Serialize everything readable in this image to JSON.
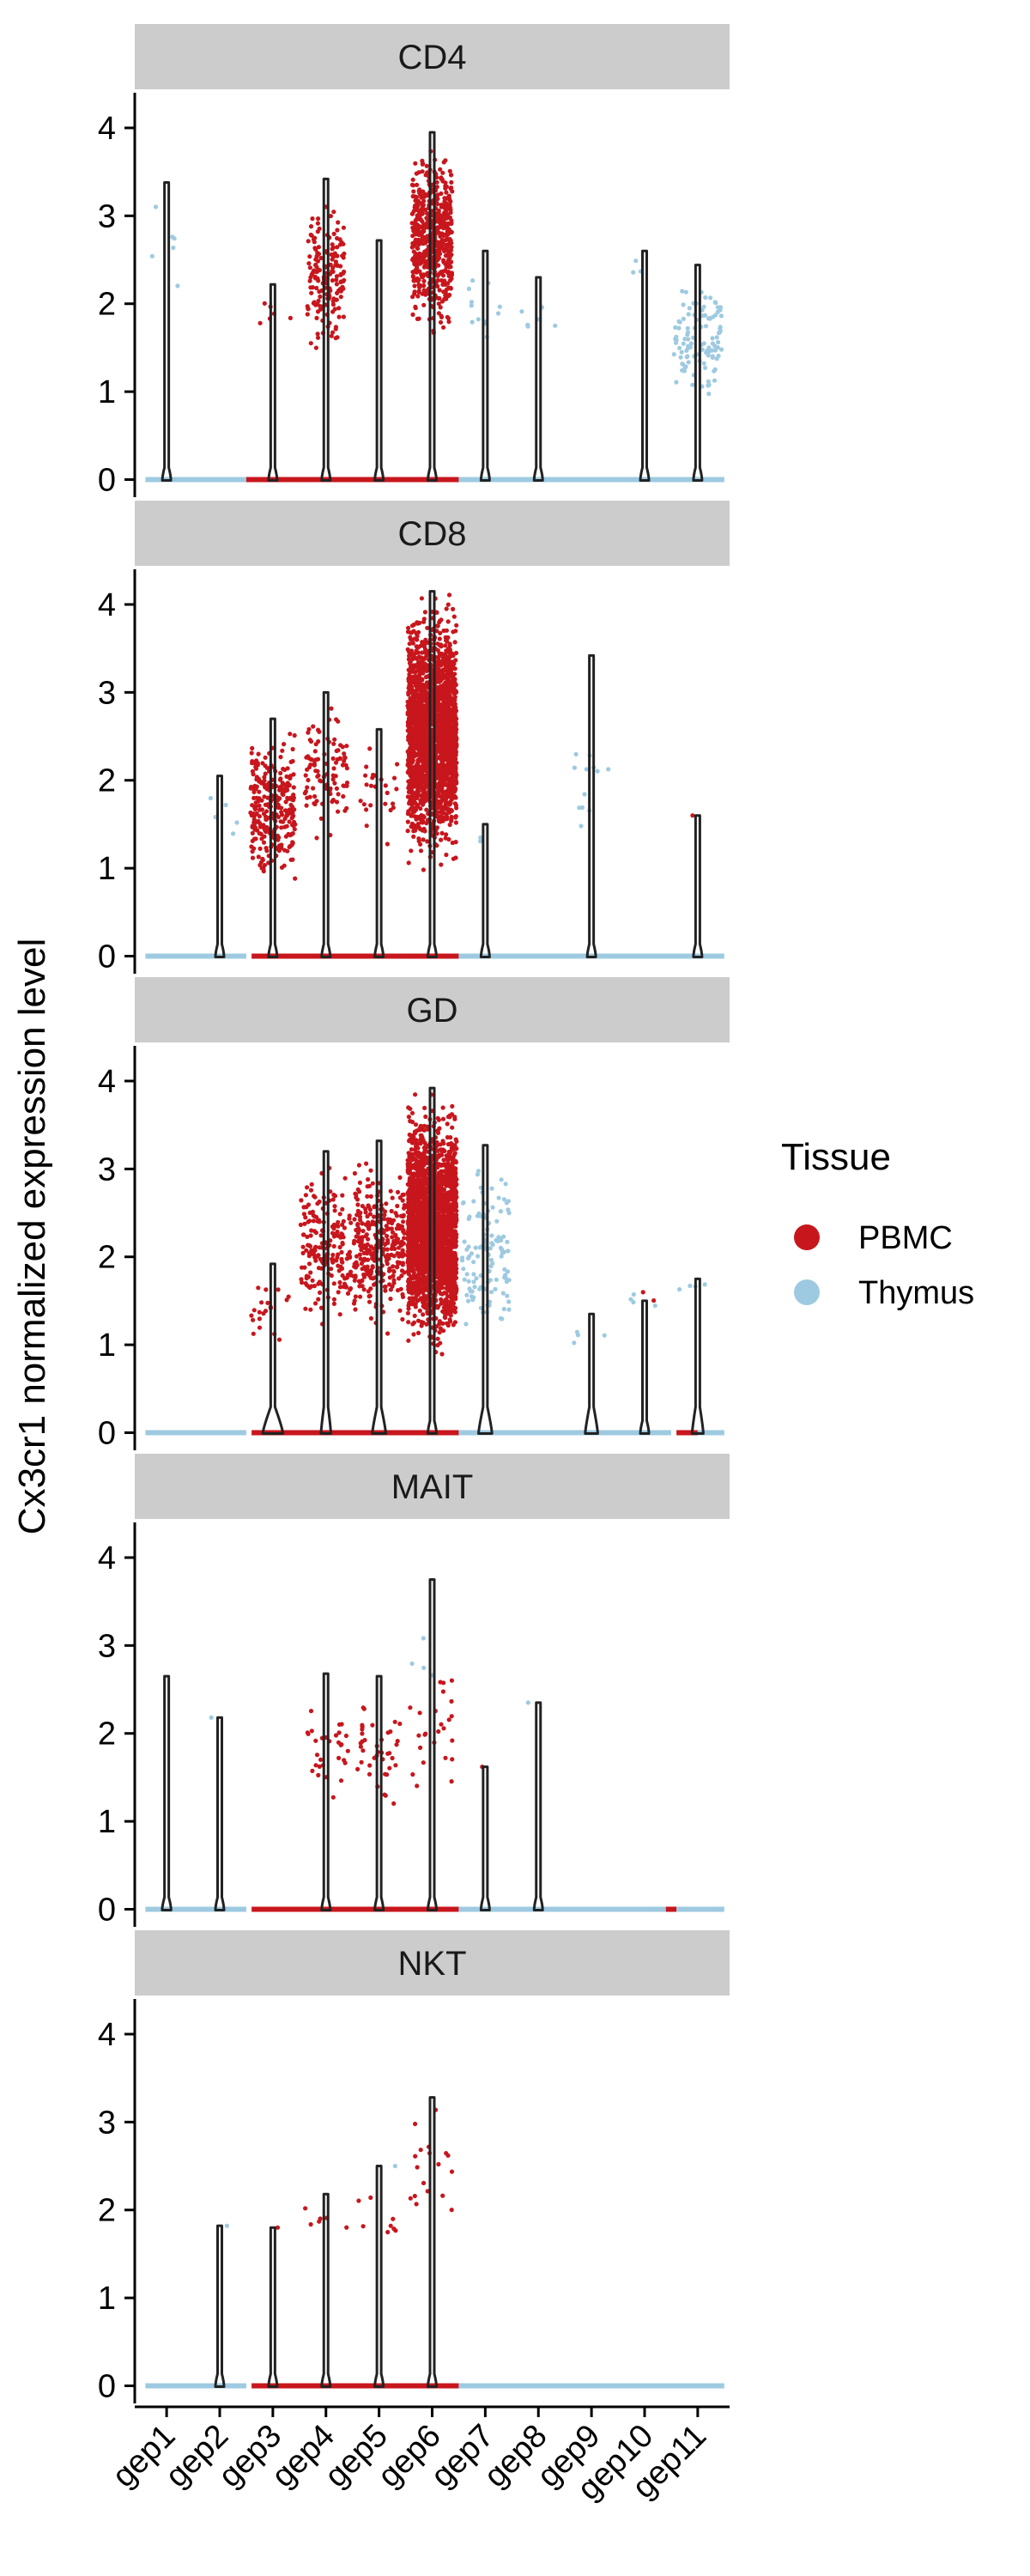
{
  "chart_data": {
    "type": "violin",
    "ylabel": "Cx3cr1 normalized expression level",
    "categories": [
      "gep1",
      "gep2",
      "gep3",
      "gep4",
      "gep5",
      "gep6",
      "gep7",
      "gep8",
      "gep9",
      "gep10",
      "gep11"
    ],
    "y_ticks": [
      "0",
      "1",
      "2",
      "3",
      "4"
    ],
    "ylim": [
      -0.2,
      4.4
    ],
    "legend": {
      "title": "Tissue",
      "position": "right",
      "entries": [
        {
          "label": "PBMC",
          "color": "#c8161d"
        },
        {
          "label": "Thymus",
          "color": "#9ecae1"
        }
      ]
    },
    "facets": [
      {
        "label": "CD4",
        "violin_max": [
          3.38,
          0,
          2.22,
          3.42,
          2.72,
          3.95,
          2.6,
          2.3,
          0,
          2.6,
          2.44
        ],
        "groups": [
          {
            "tissue": "Thymus",
            "gep": 1,
            "n": 6,
            "min": 1.6,
            "max": 3.4,
            "spread": 0.35
          },
          {
            "tissue": "PBMC",
            "gep": 3,
            "n": 6,
            "min": 1.5,
            "max": 2.2,
            "spread": 0.35
          },
          {
            "tissue": "PBMC",
            "gep": 4,
            "n": 170,
            "min": 1.3,
            "max": 3.3,
            "spread": 0.35
          },
          {
            "tissue": "PBMC",
            "gep": 6,
            "n": 600,
            "min": 1.5,
            "max": 3.9,
            "spread": 0.38
          },
          {
            "tissue": "Thymus",
            "gep": 7,
            "n": 12,
            "min": 1.3,
            "max": 2.6,
            "spread": 0.35
          },
          {
            "tissue": "Thymus",
            "gep": 8,
            "n": 6,
            "min": 1.5,
            "max": 2.3,
            "spread": 0.35
          },
          {
            "tissue": "Thymus",
            "gep": 10,
            "n": 3,
            "min": 2.2,
            "max": 2.6,
            "spread": 0.35
          },
          {
            "tissue": "Thymus",
            "gep": 11,
            "n": 110,
            "min": 0.75,
            "max": 2.4,
            "spread": 0.45
          }
        ]
      },
      {
        "label": "CD8",
        "violin_max": [
          0,
          2.05,
          2.7,
          3.0,
          2.58,
          4.15,
          1.5,
          0,
          3.42,
          0,
          1.6
        ],
        "groups": [
          {
            "tissue": "Thymus",
            "gep": 2,
            "n": 5,
            "min": 1.1,
            "max": 2.0,
            "spread": 0.35
          },
          {
            "tissue": "PBMC",
            "gep": 3,
            "n": 300,
            "min": 0.7,
            "max": 2.7,
            "spread": 0.42
          },
          {
            "tissue": "PBMC",
            "gep": 4,
            "n": 100,
            "min": 1.2,
            "max": 3.0,
            "spread": 0.4
          },
          {
            "tissue": "PBMC",
            "gep": 5,
            "n": 25,
            "min": 1.2,
            "max": 2.6,
            "spread": 0.35
          },
          {
            "tissue": "PBMC",
            "gep": 6,
            "n": 2200,
            "min": 0.9,
            "max": 4.2,
            "spread": 0.46
          },
          {
            "tissue": "Thymus",
            "gep": 7,
            "n": 2,
            "min": 1.2,
            "max": 1.5,
            "spread": 0.3
          },
          {
            "tissue": "Thymus",
            "gep": 9,
            "n": 12,
            "min": 1.2,
            "max": 2.8,
            "spread": 0.35
          },
          {
            "tissue": "PBMC",
            "gep": 11,
            "n": 1,
            "min": 1.6,
            "max": 1.6,
            "spread": 0.1
          }
        ]
      },
      {
        "label": "GD",
        "violin_max": [
          0,
          0,
          1.92,
          3.2,
          3.32,
          3.92,
          3.27,
          0,
          1.35,
          1.5,
          1.75
        ],
        "groups": [
          {
            "tissue": "PBMC",
            "gep": 3,
            "n": 20,
            "min": 0.9,
            "max": 1.9,
            "spread": 0.42
          },
          {
            "tissue": "PBMC",
            "gep": 4,
            "n": 200,
            "min": 1.0,
            "max": 3.2,
            "spread": 0.48
          },
          {
            "tissue": "PBMC",
            "gep": 5,
            "n": 320,
            "min": 1.0,
            "max": 3.3,
            "spread": 0.48
          },
          {
            "tissue": "PBMC",
            "gep": 6,
            "n": 2400,
            "min": 0.8,
            "max": 3.9,
            "spread": 0.46
          },
          {
            "tissue": "Thymus",
            "gep": 7,
            "n": 120,
            "min": 0.9,
            "max": 3.3,
            "spread": 0.45
          },
          {
            "tissue": "Thymus",
            "gep": 9,
            "n": 4,
            "min": 0.8,
            "max": 1.3,
            "spread": 0.35
          },
          {
            "tissue": "Thymus",
            "gep": 10,
            "n": 4,
            "min": 1.3,
            "max": 1.7,
            "spread": 0.35
          },
          {
            "tissue": "PBMC",
            "gep": 10,
            "n": 2,
            "min": 1.5,
            "max": 1.6,
            "spread": 0.35
          },
          {
            "tissue": "Thymus",
            "gep": 11,
            "n": 4,
            "min": 1.6,
            "max": 1.75,
            "spread": 0.35
          }
        ]
      },
      {
        "label": "MAIT",
        "violin_max": [
          2.65,
          2.18,
          0,
          2.68,
          2.65,
          3.75,
          1.62,
          2.35,
          0,
          0,
          0
        ],
        "groups": [
          {
            "tissue": "Thymus",
            "gep": 2,
            "n": 1,
            "min": 2.18,
            "max": 2.18,
            "spread": 0.35
          },
          {
            "tissue": "PBMC",
            "gep": 4,
            "n": 30,
            "min": 1.1,
            "max": 2.7,
            "spread": 0.42
          },
          {
            "tissue": "PBMC",
            "gep": 5,
            "n": 40,
            "min": 1.0,
            "max": 2.6,
            "spread": 0.42
          },
          {
            "tissue": "PBMC",
            "gep": 6,
            "n": 25,
            "min": 1.2,
            "max": 3.0,
            "spread": 0.42
          },
          {
            "tissue": "Thymus",
            "gep": 6,
            "n": 4,
            "min": 2.0,
            "max": 3.75,
            "spread": 0.4
          },
          {
            "tissue": "PBMC",
            "gep": 7,
            "n": 1,
            "min": 1.62,
            "max": 1.62,
            "spread": 0.1
          },
          {
            "tissue": "Thymus",
            "gep": 8,
            "n": 1,
            "min": 2.35,
            "max": 2.35,
            "spread": 0.2
          }
        ]
      },
      {
        "label": "NKT",
        "violin_max": [
          0,
          1.82,
          1.8,
          2.18,
          2.5,
          3.28,
          0,
          0,
          0,
          0,
          0
        ],
        "groups": [
          {
            "tissue": "Thymus",
            "gep": 2,
            "n": 1,
            "min": 1.82,
            "max": 1.82,
            "spread": 0.3
          },
          {
            "tissue": "PBMC",
            "gep": 3,
            "n": 1,
            "min": 1.8,
            "max": 1.8,
            "spread": 0.2
          },
          {
            "tissue": "PBMC",
            "gep": 4,
            "n": 6,
            "min": 1.6,
            "max": 2.2,
            "spread": 0.42
          },
          {
            "tissue": "PBMC",
            "gep": 5,
            "n": 8,
            "min": 1.5,
            "max": 2.4,
            "spread": 0.42
          },
          {
            "tissue": "Thymus",
            "gep": 5,
            "n": 1,
            "min": 2.5,
            "max": 2.5,
            "spread": 0.35
          },
          {
            "tissue": "PBMC",
            "gep": 6,
            "n": 18,
            "min": 1.5,
            "max": 3.3,
            "spread": 0.42
          }
        ]
      }
    ],
    "zero_strips": [
      [
        [
          "Thymus",
          0.6,
          2.5
        ],
        [
          "PBMC",
          2.5,
          6.5
        ],
        [
          "Thymus",
          6.5,
          11.5
        ]
      ],
      [
        [
          "Thymus",
          0.6,
          2.5
        ],
        [
          "PBMC",
          2.6,
          6.5
        ],
        [
          "Thymus",
          6.5,
          11.5
        ]
      ],
      [
        [
          "Thymus",
          0.6,
          2.5
        ],
        [
          "PBMC",
          2.6,
          6.5
        ],
        [
          "Thymus",
          6.5,
          10.5
        ],
        [
          "PBMC",
          10.6,
          11.0
        ],
        [
          "Thymus",
          11.0,
          11.5
        ]
      ],
      [
        [
          "Thymus",
          0.6,
          2.5
        ],
        [
          "PBMC",
          2.6,
          6.5
        ],
        [
          "Thymus",
          6.5,
          10.4
        ],
        [
          "PBMC",
          10.4,
          10.6
        ],
        [
          "Thymus",
          10.6,
          11.5
        ]
      ],
      [
        [
          "Thymus",
          0.6,
          2.5
        ],
        [
          "PBMC",
          2.6,
          6.5
        ],
        [
          "Thymus",
          6.5,
          11.5
        ]
      ]
    ],
    "zero_bulge": [
      [
        0.12,
        0,
        0.08,
        0.06,
        0.05,
        0.06,
        0.03,
        0.08,
        0,
        0.12,
        0.18
      ],
      [
        0,
        0.18,
        0.05,
        0.05,
        0.05,
        0.05,
        0.05,
        0,
        0.05,
        0,
        0.03
      ],
      [
        0,
        0,
        0.45,
        0.22,
        0.3,
        0.12,
        0.3,
        0,
        0.28,
        0.1,
        0.25
      ],
      [
        0.2,
        0.15,
        0,
        0.05,
        0.1,
        0.08,
        0.06,
        0.06,
        0,
        0,
        0
      ],
      [
        0,
        0.1,
        0.08,
        0.1,
        0.1,
        0.05,
        0,
        0,
        0,
        0,
        0
      ]
    ]
  }
}
